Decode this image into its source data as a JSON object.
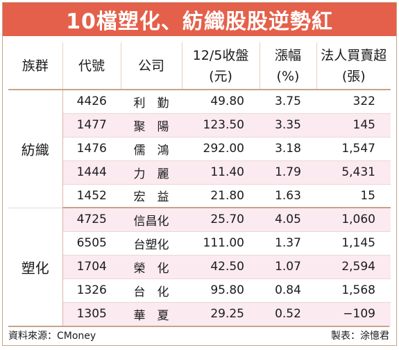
{
  "title": "10檔塑化、紡織股股逆勢紅",
  "table": {
    "headers": {
      "group": "族群",
      "code": "代號",
      "company": "公司",
      "price_line1": "12/5收盤",
      "price_line2": "(元)",
      "change_line1": "漲幅",
      "change_line2": "(%)",
      "net_line1": "法人買賣超",
      "net_line2": "(張)"
    },
    "groups": [
      {
        "name": "紡織",
        "rows": [
          {
            "code": "4426",
            "company": "利　勤",
            "close": "49.80",
            "change": "3.75",
            "net": "322"
          },
          {
            "code": "1477",
            "company": "聚　陽",
            "close": "123.50",
            "change": "3.35",
            "net": "145"
          },
          {
            "code": "1476",
            "company": "儒　鴻",
            "close": "292.00",
            "change": "3.18",
            "net": "1,547"
          },
          {
            "code": "1444",
            "company": "力　麗",
            "close": "11.40",
            "change": "1.79",
            "net": "5,431"
          },
          {
            "code": "1452",
            "company": "宏　益",
            "close": "21.80",
            "change": "1.63",
            "net": "15"
          }
        ]
      },
      {
        "name": "塑化",
        "rows": [
          {
            "code": "4725",
            "company": "信昌化",
            "close": "25.70",
            "change": "4.05",
            "net": "1,060"
          },
          {
            "code": "6505",
            "company": "台塑化",
            "close": "111.00",
            "change": "1.37",
            "net": "1,145"
          },
          {
            "code": "1704",
            "company": "榮　化",
            "close": "42.50",
            "change": "1.07",
            "net": "2,594"
          },
          {
            "code": "1326",
            "company": "台　化",
            "close": "95.80",
            "change": "0.84",
            "net": "1,568"
          },
          {
            "code": "1305",
            "company": "華　夏",
            "close": "29.25",
            "change": "0.52",
            "net": "−109"
          }
        ]
      }
    ]
  },
  "footer": {
    "source": "資料來源：CMoney",
    "author": "製表：涂憶君"
  },
  "colors": {
    "title_bg": "#e4604a",
    "row_stripe": "#fbeaf0",
    "rule": "#c7a28c"
  }
}
